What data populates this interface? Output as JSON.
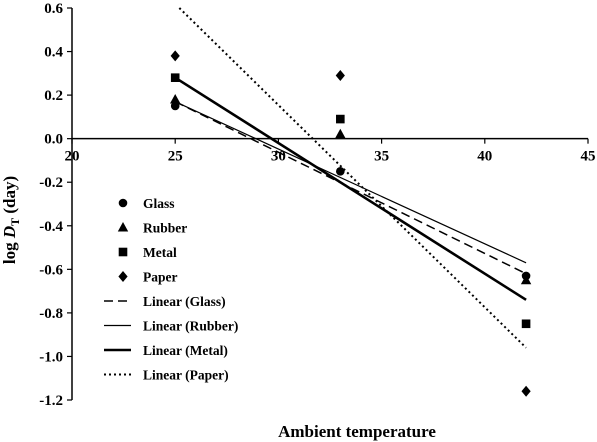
{
  "chart_data": {
    "type": "scatter",
    "xlabel": "Ambient temperature",
    "ylabel_main": "log ",
    "ylabel_var": "D",
    "ylabel_sub": "T",
    "ylabel_unit": " (day)",
    "xlim": [
      20,
      45
    ],
    "ylim": [
      -1.2,
      0.6
    ],
    "x_ticks": [
      "20",
      "25",
      "30",
      "35",
      "40",
      "45"
    ],
    "y_ticks": [
      "0.6",
      "0.4",
      "0.2",
      "0.0",
      "-0.2",
      "-0.4",
      "-0.6",
      "-0.8",
      "-1.0",
      "-1.2"
    ],
    "grid": false,
    "legend_position": "left-inside",
    "series": [
      {
        "name": "Glass",
        "marker": "circle",
        "x": [
          25,
          33,
          42
        ],
        "y": [
          0.15,
          -0.15,
          -0.63
        ]
      },
      {
        "name": "Rubber",
        "marker": "triangle",
        "x": [
          25,
          33,
          42
        ],
        "y": [
          0.18,
          0.02,
          -0.65
        ]
      },
      {
        "name": "Metal",
        "marker": "square",
        "x": [
          25,
          33,
          42
        ],
        "y": [
          0.28,
          0.09,
          -0.85
        ]
      },
      {
        "name": "Paper",
        "marker": "diamond",
        "x": [
          25,
          33,
          42
        ],
        "y": [
          0.38,
          0.29,
          -1.16
        ]
      }
    ],
    "trendlines": [
      {
        "name": "Linear (Glass)",
        "style": "dashed",
        "x": [
          25,
          42
        ],
        "y": [
          0.17,
          -0.62
        ]
      },
      {
        "name": "Linear (Rubber)",
        "style": "thin",
        "x": [
          25,
          42
        ],
        "y": [
          0.17,
          -0.57
        ]
      },
      {
        "name": "Linear (Metal)",
        "style": "thick",
        "x": [
          25,
          42
        ],
        "y": [
          0.28,
          -0.74
        ]
      },
      {
        "name": "Linear (Paper)",
        "style": "dotted",
        "x": [
          25.2,
          42
        ],
        "y": [
          0.6,
          -0.96
        ]
      }
    ]
  }
}
